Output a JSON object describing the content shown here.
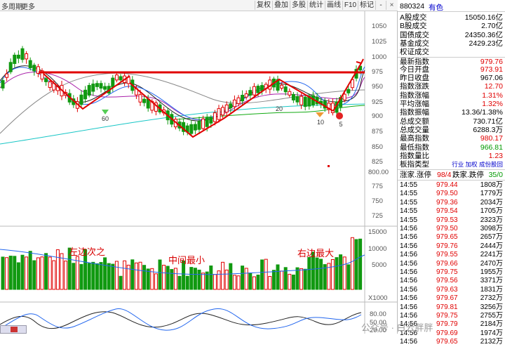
{
  "toolbar": {
    "period_label": "多周期",
    "more_label": "更多",
    "buttons": [
      "复权",
      "叠加",
      "多股",
      "统计",
      "画线",
      "F10",
      "标记",
      "-"
    ],
    "close_icon": "close-icon"
  },
  "price_axis": [
    "1050",
    "1025",
    "1000",
    "975",
    "950",
    "925",
    "900",
    "875",
    "850",
    "825",
    "800.00",
    "775",
    "750",
    "725"
  ],
  "volume_axis": [
    "15000",
    "10000",
    "5000"
  ],
  "volume_unit": "X1000",
  "osc_axis": [
    "80.00",
    "50.00",
    "20.00"
  ],
  "chart_labels": {
    "low_60": "60",
    "low_20": "20",
    "low_10": "10",
    "low_5": "5"
  },
  "annotations": {
    "left": "左边次之",
    "middle": "中间最小",
    "right": "右边最大"
  },
  "watermark": "公众号 · 白云胖胖",
  "quote": {
    "code": "880324",
    "name": "有色",
    "rows": [
      {
        "label": "A股成交",
        "value": "15050.16亿",
        "color": "black"
      },
      {
        "label": "B股成交",
        "value": "2.70亿",
        "color": "black"
      },
      {
        "label": "国债成交",
        "value": "24350.36亿",
        "color": "black"
      },
      {
        "label": "基金成交",
        "value": "2429.23亿",
        "color": "black"
      },
      {
        "label": "权证成交",
        "value": "",
        "color": "black"
      },
      {
        "label": "最新指数",
        "value": "979.76",
        "color": "red"
      },
      {
        "label": "今日开盘",
        "value": "973.91",
        "color": "red"
      },
      {
        "label": "昨日收盘",
        "value": "967.06",
        "color": "black"
      },
      {
        "label": "指数涨跌",
        "value": "12.70",
        "color": "red"
      },
      {
        "label": "指数涨幅",
        "value": "1.31%",
        "color": "red"
      },
      {
        "label": "平均涨幅",
        "value": "1.32%",
        "color": "red"
      },
      {
        "label": "指数振幅",
        "value": "13.36/1.38%",
        "color": "black"
      },
      {
        "label": "总成交额",
        "value": "730.71亿",
        "color": "black"
      },
      {
        "label": "总成交量",
        "value": "6288.3万",
        "color": "black"
      },
      {
        "label": "最高指数",
        "value": "980.17",
        "color": "red"
      },
      {
        "label": "最低指数",
        "value": "966.81",
        "color": "green"
      },
      {
        "label": "指数量比",
        "value": "1.23",
        "color": "red"
      },
      {
        "label": "板指类型",
        "value": "行业 加权 成份股回",
        "color": "blue"
      }
    ],
    "updown_label": "涨家.涨停",
    "updown_value": "98/4",
    "downcount_label": "跌家.跌停",
    "downcount_value": "35/0"
  },
  "ticks": [
    {
      "time": "14:55",
      "price": "979.44",
      "vol": "1808万"
    },
    {
      "time": "14:55",
      "price": "979.50",
      "vol": "1779万"
    },
    {
      "time": "14:55",
      "price": "979.36",
      "vol": "2034万"
    },
    {
      "time": "14:55",
      "price": "979.54",
      "vol": "1705万"
    },
    {
      "time": "14:55",
      "price": "979.53",
      "vol": "2323万"
    },
    {
      "time": "14:56",
      "price": "979.50",
      "vol": "3098万"
    },
    {
      "time": "14:56",
      "price": "979.65",
      "vol": "2657万"
    },
    {
      "time": "14:56",
      "price": "979.76",
      "vol": "2444万"
    },
    {
      "time": "14:56",
      "price": "979.55",
      "vol": "2241万"
    },
    {
      "time": "14:56",
      "price": "979.66",
      "vol": "2470万"
    },
    {
      "time": "14:56",
      "price": "979.75",
      "vol": "1955万"
    },
    {
      "time": "14:56",
      "price": "979.56",
      "vol": "3371万"
    },
    {
      "time": "14:56",
      "price": "979.63",
      "vol": "1831万"
    },
    {
      "time": "14:56",
      "price": "979.67",
      "vol": "2732万"
    },
    {
      "time": "14:56",
      "price": "979.81",
      "vol": "3256万"
    },
    {
      "time": "14:56",
      "price": "979.75",
      "vol": "2755万"
    },
    {
      "time": "14:56",
      "price": "979.79",
      "vol": "2184万"
    },
    {
      "time": "14:56",
      "price": "979.69",
      "vol": "1974万"
    },
    {
      "time": "14:56",
      "price": "979.65",
      "vol": "2132万"
    }
  ]
}
